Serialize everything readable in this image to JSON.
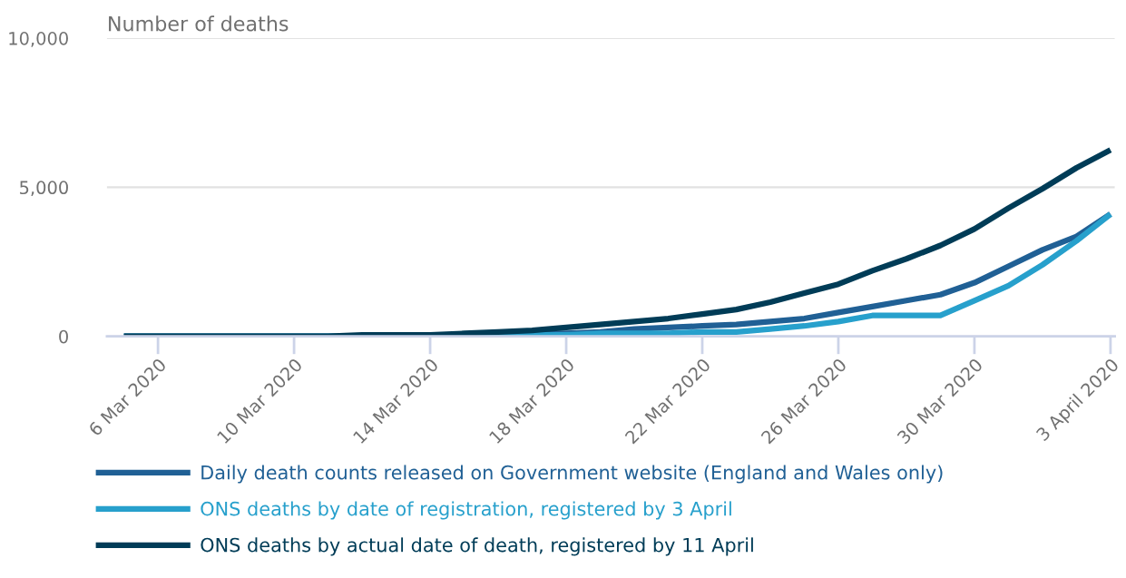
{
  "chart_data": {
    "type": "line",
    "ylabel": "Number of deaths",
    "x": [
      "2020-03-05",
      "2020-03-06",
      "2020-03-07",
      "2020-03-08",
      "2020-03-09",
      "2020-03-10",
      "2020-03-11",
      "2020-03-12",
      "2020-03-13",
      "2020-03-14",
      "2020-03-15",
      "2020-03-16",
      "2020-03-17",
      "2020-03-18",
      "2020-03-19",
      "2020-03-20",
      "2020-03-21",
      "2020-03-22",
      "2020-03-23",
      "2020-03-24",
      "2020-03-25",
      "2020-03-26",
      "2020-03-27",
      "2020-03-28",
      "2020-03-29",
      "2020-03-30",
      "2020-03-31",
      "2020-04-01",
      "2020-04-02",
      "2020-04-03"
    ],
    "series": [
      {
        "name": "Daily death counts released on Government website (England and Wales only)",
        "color": "#206095",
        "values": [
          0,
          0,
          0,
          0,
          0,
          0,
          0,
          0,
          0,
          0,
          50,
          50,
          100,
          100,
          150,
          250,
          300,
          350,
          400,
          500,
          600,
          800,
          1000,
          1200,
          1400,
          1800,
          2350,
          2900,
          3350,
          4100
        ]
      },
      {
        "name": "ONS deaths by date of registration, registered by 3 April",
        "color": "#27a0cc",
        "values": [
          0,
          0,
          0,
          0,
          0,
          0,
          0,
          0,
          0,
          0,
          0,
          0,
          50,
          50,
          100,
          100,
          100,
          150,
          150,
          250,
          350,
          500,
          700,
          700,
          700,
          1200,
          1700,
          2400,
          3200,
          4100
        ]
      },
      {
        "name": "ONS deaths by actual date of death, registered by 11 April",
        "color": "#003c57",
        "values": [
          0,
          0,
          0,
          0,
          0,
          0,
          0,
          50,
          50,
          50,
          100,
          150,
          200,
          300,
          400,
          500,
          600,
          750,
          900,
          1150,
          1450,
          1750,
          2200,
          2600,
          3050,
          3600,
          4300,
          4950,
          5650,
          6250
        ]
      }
    ],
    "xlim": [
      "2020-03-04T12:00",
      "2020-04-03T03:00"
    ],
    "xticks": [
      {
        "value": "2020-03-06",
        "label": "6 Mar 2020"
      },
      {
        "value": "2020-03-10",
        "label": "10 Mar 2020"
      },
      {
        "value": "2020-03-14",
        "label": "14 Mar 2020"
      },
      {
        "value": "2020-03-18",
        "label": "18 Mar 2020"
      },
      {
        "value": "2020-03-22",
        "label": "22 Mar 2020"
      },
      {
        "value": "2020-03-26",
        "label": "26 Mar 2020"
      },
      {
        "value": "2020-03-30",
        "label": "30 Mar 2020"
      },
      {
        "value": "2020-04-03",
        "label": "3 April 2020"
      }
    ],
    "ylim": [
      0,
      10000
    ],
    "yticks": [
      {
        "value": 0,
        "label": "0"
      },
      {
        "value": 5000,
        "label": "5,000"
      },
      {
        "value": 10000,
        "label": "10,000"
      }
    ],
    "grid": "y",
    "legend": "bottom",
    "marker": "none",
    "line_style": "solid"
  }
}
